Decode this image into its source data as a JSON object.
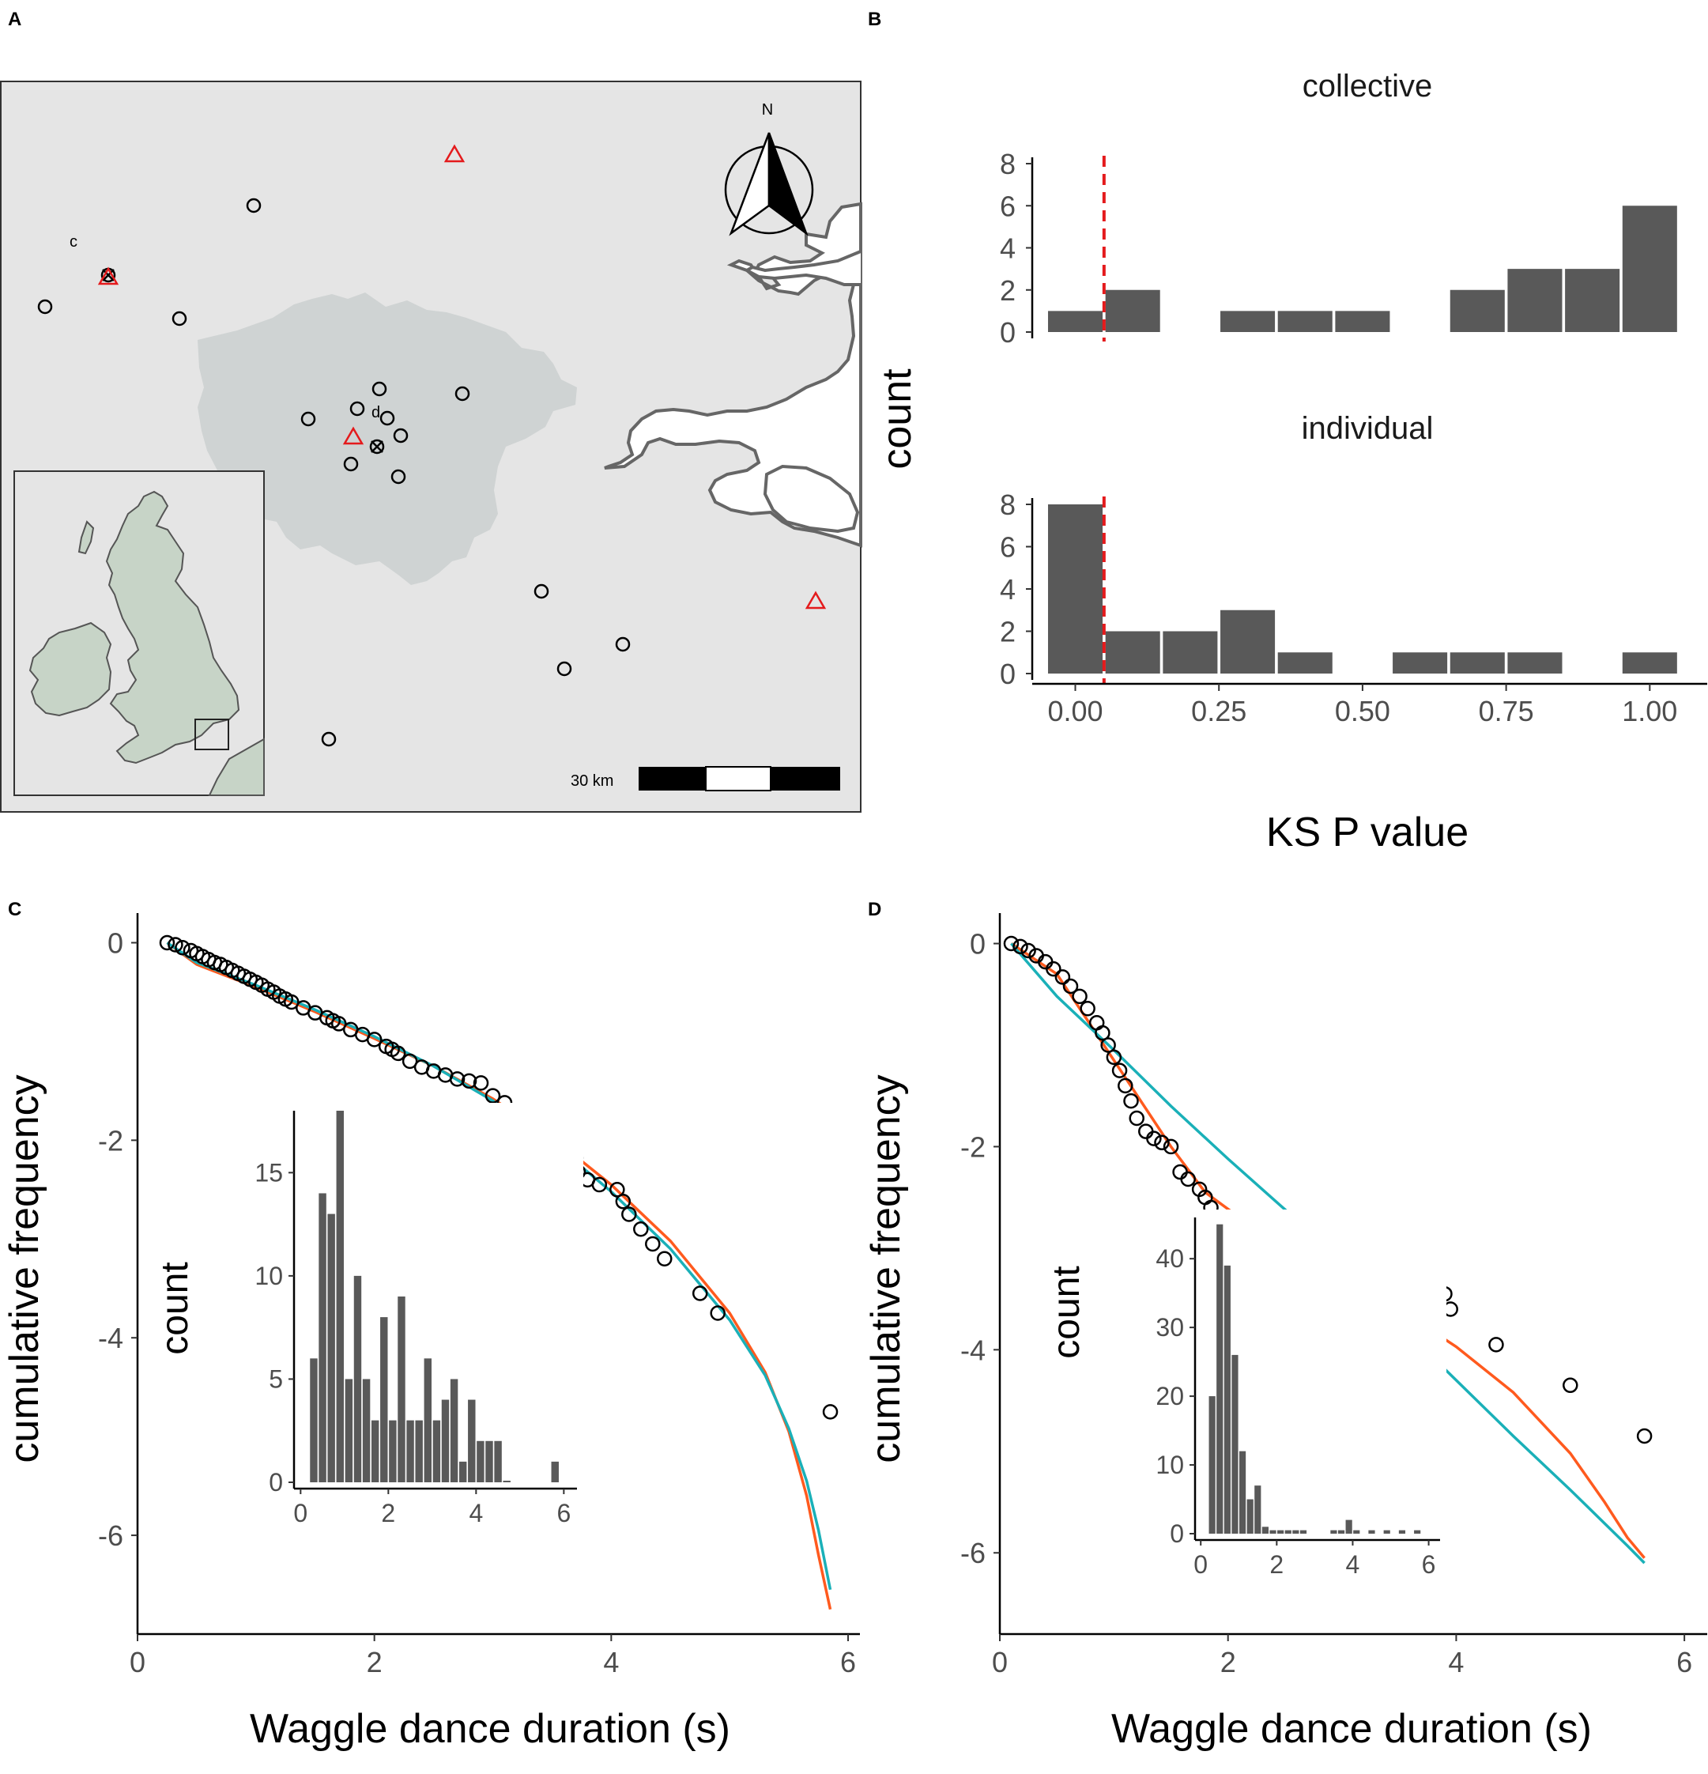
{
  "panels": {
    "A": "A",
    "B": "B",
    "C": "C",
    "D": "D"
  },
  "map": {
    "scale_label": "30 km",
    "north_label": "N",
    "site_labels": {
      "c": "c",
      "d": "d"
    },
    "colors": {
      "background": "#e5e5e5",
      "london": "#cfd3d3",
      "sea": "#ffffff",
      "coast": "#666666",
      "uk_land": "#c7d4c7",
      "trap": "#e41a1c"
    },
    "icons": [
      "north-arrow-icon",
      "scale-bar",
      "uk-inset-map"
    ]
  },
  "chart_data": [
    {
      "id": "B",
      "type": "bar",
      "facets": [
        "collective",
        "individual"
      ],
      "xlabel": "KS P value",
      "ylabel": "count",
      "x_ticks": [
        "0.00",
        "0.25",
        "0.50",
        "0.75",
        "1.00"
      ],
      "y_ticks": [
        "0",
        "2",
        "4",
        "6",
        "8"
      ],
      "xlim": [
        -0.075,
        1.1
      ],
      "ylim": [
        0,
        8
      ],
      "bin_centers": [
        0.0,
        0.1,
        0.2,
        0.3,
        0.4,
        0.5,
        0.6,
        0.7,
        0.8,
        0.9,
        1.0
      ],
      "series": [
        {
          "name": "collective",
          "values": [
            1,
            2,
            0,
            1,
            1,
            1,
            0,
            2,
            3,
            3,
            6
          ]
        },
        {
          "name": "individual",
          "values": [
            8,
            2,
            2,
            3,
            1,
            0,
            1,
            1,
            1,
            0,
            1
          ]
        }
      ],
      "reference_line": {
        "x": 0.05,
        "color": "#e41a1c",
        "style": "dashed"
      },
      "bar_color": "#595959"
    },
    {
      "id": "C",
      "type": "scatter",
      "xlabel": "Waggle dance duration (s)",
      "ylabel": "cumulative frequency",
      "x_ticks": [
        "0",
        "2",
        "4",
        "6"
      ],
      "y_ticks": [
        "0",
        "-2",
        "-4",
        "-6"
      ],
      "xlim": [
        0,
        6.1
      ],
      "ylim": [
        -7,
        0.3
      ],
      "points": {
        "x": [
          0.25,
          0.32,
          0.38,
          0.45,
          0.5,
          0.55,
          0.6,
          0.65,
          0.7,
          0.75,
          0.8,
          0.85,
          0.9,
          0.95,
          1.0,
          1.05,
          1.1,
          1.15,
          1.2,
          1.25,
          1.3,
          1.4,
          1.5,
          1.6,
          1.65,
          1.7,
          1.8,
          1.9,
          2.0,
          2.1,
          2.15,
          2.2,
          2.3,
          2.4,
          2.5,
          2.6,
          2.7,
          2.8,
          2.9,
          3.0,
          3.1,
          3.15,
          3.2,
          3.25,
          3.3,
          3.5,
          3.6,
          3.7,
          3.72,
          3.8,
          3.9,
          4.05,
          4.1,
          4.15,
          4.25,
          4.35,
          4.45,
          4.75,
          4.9,
          5.85
        ],
        "y": [
          0,
          -0.02,
          -0.05,
          -0.08,
          -0.11,
          -0.14,
          -0.17,
          -0.2,
          -0.22,
          -0.25,
          -0.28,
          -0.31,
          -0.34,
          -0.37,
          -0.4,
          -0.43,
          -0.47,
          -0.5,
          -0.54,
          -0.57,
          -0.6,
          -0.66,
          -0.71,
          -0.76,
          -0.79,
          -0.82,
          -0.88,
          -0.93,
          -0.98,
          -1.05,
          -1.08,
          -1.12,
          -1.2,
          -1.26,
          -1.3,
          -1.34,
          -1.38,
          -1.4,
          -1.42,
          -1.55,
          -1.62,
          -1.7,
          -1.78,
          -1.9,
          -1.95,
          -2.0,
          -2.02,
          -2.18,
          -2.32,
          -2.4,
          -2.45,
          -2.5,
          -2.62,
          -2.75,
          -2.9,
          -3.05,
          -3.2,
          -3.55,
          -3.75,
          -4.75
        ]
      },
      "series": [
        {
          "color": "#ff5a1e",
          "x": [
            0.25,
            0.5,
            1.0,
            1.5,
            2.0,
            2.5,
            3.0,
            3.5,
            4.0,
            4.5,
            5.0,
            5.3,
            5.5,
            5.65,
            5.75,
            5.85
          ],
          "y": [
            0,
            -0.22,
            -0.45,
            -0.7,
            -0.97,
            -1.25,
            -1.58,
            -1.97,
            -2.45,
            -3.02,
            -3.75,
            -4.35,
            -4.95,
            -5.6,
            -6.2,
            -6.75
          ]
        },
        {
          "color": "#1ab0b8",
          "x": [
            0.25,
            0.5,
            1.0,
            1.5,
            2.0,
            2.5,
            3.0,
            3.5,
            4.0,
            4.5,
            5.0,
            5.3,
            5.5,
            5.65,
            5.75,
            5.85
          ],
          "y": [
            0,
            -0.2,
            -0.43,
            -0.68,
            -0.95,
            -1.25,
            -1.6,
            -2.02,
            -2.52,
            -3.1,
            -3.82,
            -4.38,
            -4.92,
            -5.45,
            -5.95,
            -6.55
          ]
        }
      ],
      "inset": {
        "ylabel": "count",
        "x_ticks": [
          "0",
          "2",
          "4",
          "6"
        ],
        "y_ticks": [
          "0",
          "5",
          "10",
          "15"
        ],
        "xlim": [
          -0.15,
          6.3
        ],
        "ylim": [
          0,
          18
        ],
        "bin_centers": [
          0.3,
          0.5,
          0.7,
          0.9,
          1.1,
          1.3,
          1.5,
          1.7,
          1.9,
          2.1,
          2.3,
          2.5,
          2.7,
          2.9,
          3.1,
          3.3,
          3.5,
          3.7,
          3.9,
          4.1,
          4.3,
          4.5,
          4.7,
          5.8
        ],
        "values": [
          6,
          14,
          13,
          18,
          5,
          10,
          5,
          3,
          8,
          3,
          9,
          3,
          3,
          6,
          3,
          4,
          5,
          1,
          4,
          2,
          2,
          2,
          0,
          1
        ]
      }
    },
    {
      "id": "D",
      "type": "scatter",
      "xlabel": "Waggle dance duration (s)",
      "ylabel": "cumulative frequency",
      "x_ticks": [
        "0",
        "2",
        "4",
        "6"
      ],
      "y_ticks": [
        "0",
        "-2",
        "-4",
        "-6"
      ],
      "xlim": [
        0,
        6.2
      ],
      "ylim": [
        -6.8,
        0.3
      ],
      "points": {
        "x": [
          0.1,
          0.18,
          0.25,
          0.32,
          0.4,
          0.47,
          0.55,
          0.62,
          0.7,
          0.77,
          0.85,
          0.9,
          0.95,
          1.0,
          1.05,
          1.1,
          1.15,
          1.2,
          1.28,
          1.35,
          1.42,
          1.5,
          1.58,
          1.65,
          1.75,
          1.8,
          1.85,
          1.9,
          1.95,
          2.45,
          2.9,
          3.7,
          3.9,
          3.95,
          4.35,
          5.0,
          5.65
        ],
        "y": [
          0,
          -0.03,
          -0.07,
          -0.12,
          -0.18,
          -0.25,
          -0.33,
          -0.42,
          -0.52,
          -0.64,
          -0.78,
          -0.88,
          -1.0,
          -1.12,
          -1.25,
          -1.4,
          -1.55,
          -1.72,
          -1.85,
          -1.92,
          -1.96,
          -2.0,
          -2.25,
          -2.32,
          -2.42,
          -2.5,
          -2.6,
          -2.7,
          -2.8,
          -3.0,
          -3.08,
          -3.3,
          -3.45,
          -3.6,
          -3.95,
          -4.35,
          -4.85
        ]
      },
      "series": [
        {
          "color": "#ff5a1e",
          "x": [
            0.1,
            0.5,
            1.0,
            1.5,
            1.8,
            2.2,
            2.6,
            3.0,
            3.5,
            4.0,
            4.5,
            5.0,
            5.3,
            5.5,
            5.65
          ],
          "y": [
            0,
            -0.3,
            -1.15,
            -2.0,
            -2.45,
            -2.78,
            -3.02,
            -3.28,
            -3.6,
            -3.97,
            -4.42,
            -5.02,
            -5.5,
            -5.85,
            -6.05
          ]
        },
        {
          "color": "#1ab0b8",
          "x": [
            0.1,
            0.5,
            1.0,
            1.5,
            2.0,
            2.5,
            3.0,
            3.5,
            4.0,
            4.5,
            5.0,
            5.5,
            5.65
          ],
          "y": [
            0,
            -0.52,
            -1.05,
            -1.6,
            -2.12,
            -2.62,
            -3.12,
            -3.75,
            -4.3,
            -4.85,
            -5.38,
            -5.93,
            -6.1
          ]
        }
      ],
      "inset": {
        "ylabel": "count",
        "x_ticks": [
          "0",
          "2",
          "4",
          "6"
        ],
        "y_ticks": [
          "0",
          "10",
          "20",
          "30",
          "40"
        ],
        "xlim": [
          -0.15,
          6.3
        ],
        "ylim": [
          0,
          46
        ],
        "bin_centers": [
          0.3,
          0.5,
          0.7,
          0.9,
          1.1,
          1.3,
          1.5,
          1.7,
          1.9,
          2.1,
          2.3,
          2.5,
          2.7,
          3.5,
          3.7,
          3.9,
          4.1,
          4.5,
          4.9,
          5.3,
          5.7
        ],
        "values": [
          20,
          45,
          39,
          26,
          12,
          5,
          7,
          1,
          0.5,
          0.5,
          0.5,
          0.5,
          0.5,
          0.5,
          0.5,
          2,
          0.5,
          0.5,
          0.5,
          0.5,
          0.5
        ]
      }
    }
  ]
}
